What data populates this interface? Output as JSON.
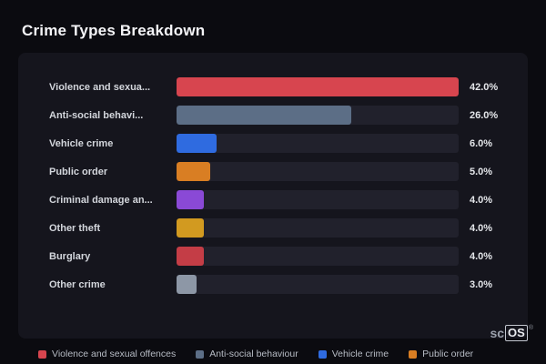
{
  "page": {
    "title": "Crime Types Breakdown"
  },
  "chart_data": {
    "type": "bar",
    "orientation": "horizontal",
    "title": "Crime Types Breakdown",
    "categories": [
      "Violence and sexua...",
      "Anti-social behavi...",
      "Vehicle crime",
      "Public order",
      "Criminal damage an...",
      "Other theft",
      "Burglary",
      "Other crime"
    ],
    "values": [
      42,
      26,
      6,
      5,
      4,
      4,
      4,
      3
    ],
    "value_labels": [
      "42.0%",
      "26.0%",
      "6.0%",
      "5.0%",
      "4.0%",
      "4.0%",
      "4.0%",
      "3.0%"
    ],
    "bar_colors": [
      "#d7454f",
      "#5c6e86",
      "#2f6be0",
      "#d97e23",
      "#8a49d6",
      "#d29a20",
      "#c43d46",
      "#8d97a6"
    ],
    "xlim": [
      0,
      42
    ],
    "grid": false,
    "legend_position": "bottom"
  },
  "legend": {
    "items": [
      {
        "label": "Violence and sexual offences",
        "color": "#d7454f"
      },
      {
        "label": "Anti-social behaviour",
        "color": "#5c6e86"
      },
      {
        "label": "Vehicle crime",
        "color": "#2f6be0"
      },
      {
        "label": "Public order",
        "color": "#d97e23"
      }
    ]
  },
  "branding": {
    "prefix": "sc",
    "suffix": "OS",
    "reg": "®"
  }
}
